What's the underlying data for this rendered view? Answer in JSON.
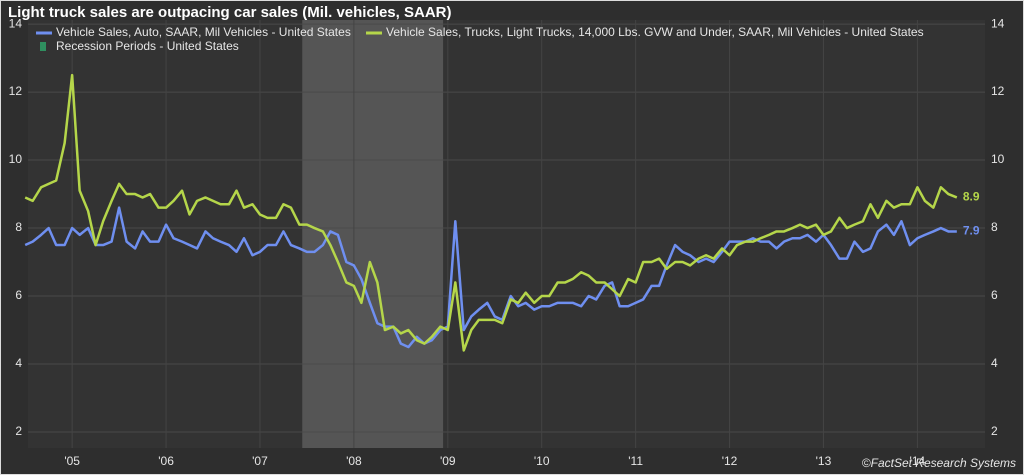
{
  "chart_data": {
    "type": "line",
    "title": "Light truck sales are outpacing car sales (Mil. vehicles, SAAR)",
    "credit": "©FactSet Research Systems",
    "recession": {
      "name": "Recession Periods - United States",
      "color": "#555555",
      "x": [
        2007.95,
        2009.45
      ]
    },
    "x": [
      2005.0,
      2005.08,
      2005.17,
      2005.25,
      2005.33,
      2005.42,
      2005.5,
      2005.58,
      2005.67,
      2005.75,
      2005.83,
      2005.92,
      2006.0,
      2006.08,
      2006.17,
      2006.25,
      2006.33,
      2006.42,
      2006.5,
      2006.58,
      2006.67,
      2006.75,
      2006.83,
      2006.92,
      2007.0,
      2007.08,
      2007.17,
      2007.25,
      2007.33,
      2007.42,
      2007.5,
      2007.58,
      2007.67,
      2007.75,
      2007.83,
      2007.92,
      2008.0,
      2008.08,
      2008.17,
      2008.25,
      2008.33,
      2008.42,
      2008.5,
      2008.58,
      2008.67,
      2008.75,
      2008.83,
      2008.92,
      2009.0,
      2009.08,
      2009.17,
      2009.25,
      2009.33,
      2009.42,
      2009.5,
      2009.58,
      2009.67,
      2009.75,
      2009.83,
      2009.92,
      2010.0,
      2010.08,
      2010.17,
      2010.25,
      2010.33,
      2010.42,
      2010.5,
      2010.58,
      2010.67,
      2010.75,
      2010.83,
      2010.92,
      2011.0,
      2011.08,
      2011.17,
      2011.25,
      2011.33,
      2011.42,
      2011.5,
      2011.58,
      2011.67,
      2011.75,
      2011.83,
      2011.92,
      2012.0,
      2012.08,
      2012.17,
      2012.25,
      2012.33,
      2012.42,
      2012.5,
      2012.58,
      2012.67,
      2012.75,
      2012.83,
      2012.92,
      2013.0,
      2013.08,
      2013.17,
      2013.25,
      2013.33,
      2013.42,
      2013.5,
      2013.58,
      2013.67,
      2013.75,
      2013.83,
      2013.92,
      2014.0,
      2014.08,
      2014.17,
      2014.25,
      2014.33,
      2014.42,
      2014.5,
      2014.58,
      2014.67,
      2014.75,
      2014.83,
      2014.92
    ],
    "series": [
      {
        "name": "Vehicle Sales, Auto, SAAR, Mil Vehicles - United States",
        "color": "#6f8ff0",
        "values": [
          7.5,
          7.6,
          7.8,
          8.0,
          7.5,
          7.5,
          8.0,
          7.8,
          8.0,
          7.5,
          7.5,
          7.6,
          8.6,
          7.6,
          7.4,
          7.9,
          7.6,
          7.6,
          8.1,
          7.7,
          7.6,
          7.5,
          7.4,
          7.9,
          7.7,
          7.6,
          7.5,
          7.3,
          7.7,
          7.2,
          7.3,
          7.5,
          7.5,
          7.9,
          7.5,
          7.4,
          7.3,
          7.3,
          7.5,
          7.9,
          7.8,
          7.0,
          6.9,
          6.5,
          5.8,
          5.2,
          5.1,
          5.1,
          4.6,
          4.5,
          4.8,
          4.6,
          4.7,
          5.0,
          5.1,
          8.2,
          5.0,
          5.4,
          5.6,
          5.8,
          5.4,
          5.3,
          6.0,
          5.7,
          5.8,
          5.6,
          5.7,
          5.7,
          5.8,
          5.8,
          5.8,
          5.7,
          6.0,
          5.9,
          6.3,
          6.4,
          5.7,
          5.7,
          5.8,
          5.9,
          6.3,
          6.3,
          6.9,
          7.5,
          7.3,
          7.2,
          7.0,
          7.1,
          7.0,
          7.3,
          7.6,
          7.6,
          7.6,
          7.7,
          7.6,
          7.6,
          7.4,
          7.6,
          7.7,
          7.7,
          7.8,
          7.6,
          7.8,
          7.5,
          7.1,
          7.1,
          7.6,
          7.3,
          7.4,
          7.9,
          8.1,
          7.8,
          8.2,
          7.5,
          7.7,
          7.8,
          7.9,
          8.0,
          7.9,
          7.9
        ]
      },
      {
        "name": "Vehicle Sales, Trucks, Light Trucks, 14,000 Lbs. GVW and Under, SAAR, Mil Vehicles - United States",
        "color": "#b5d64a",
        "values": [
          8.9,
          8.8,
          9.2,
          9.3,
          9.4,
          10.5,
          12.5,
          9.1,
          8.5,
          7.5,
          8.2,
          8.8,
          9.3,
          9.0,
          9.0,
          8.9,
          9.0,
          8.6,
          8.6,
          8.8,
          9.1,
          8.4,
          8.8,
          8.9,
          8.8,
          8.7,
          8.7,
          9.1,
          8.6,
          8.7,
          8.4,
          8.3,
          8.3,
          8.7,
          8.6,
          8.1,
          8.1,
          8.0,
          7.9,
          7.5,
          7.0,
          6.4,
          6.3,
          5.8,
          7.0,
          6.4,
          5.0,
          5.1,
          4.9,
          5.0,
          4.7,
          4.6,
          4.8,
          5.1,
          5.0,
          6.4,
          4.4,
          5.0,
          5.3,
          5.3,
          5.3,
          5.2,
          5.9,
          5.8,
          6.1,
          5.8,
          6.0,
          6.0,
          6.4,
          6.4,
          6.5,
          6.7,
          6.6,
          6.4,
          6.4,
          6.2,
          6.0,
          6.5,
          6.4,
          7.0,
          7.0,
          7.1,
          6.8,
          7.0,
          7.0,
          6.9,
          7.1,
          7.2,
          7.1,
          7.4,
          7.2,
          7.5,
          7.6,
          7.6,
          7.7,
          7.8,
          7.9,
          7.9,
          8.0,
          8.1,
          8.0,
          8.1,
          7.8,
          7.9,
          8.3,
          8.0,
          8.1,
          8.2,
          8.7,
          8.3,
          8.8,
          8.6,
          8.7,
          8.7,
          9.2,
          8.8,
          8.6,
          9.2,
          9.0,
          8.9
        ]
      }
    ],
    "xlim": [
      2005.03,
      2015.22
    ],
    "xticks": [
      {
        "value": 2005.5,
        "label": "'05"
      },
      {
        "value": 2006.5,
        "label": "'06"
      },
      {
        "value": 2007.5,
        "label": "'07"
      },
      {
        "value": 2008.5,
        "label": "'08"
      },
      {
        "value": 2009.5,
        "label": "'09"
      },
      {
        "value": 2010.5,
        "label": "'10"
      },
      {
        "value": 2011.5,
        "label": "'11"
      },
      {
        "value": 2012.5,
        "label": "'12"
      },
      {
        "value": 2013.5,
        "label": "'13"
      },
      {
        "value": 2014.5,
        "label": "'14"
      }
    ],
    "ylim": [
      1.53,
      14.12
    ],
    "yticks": [
      2,
      4,
      6,
      8,
      10,
      12,
      14
    ],
    "grid": true
  }
}
